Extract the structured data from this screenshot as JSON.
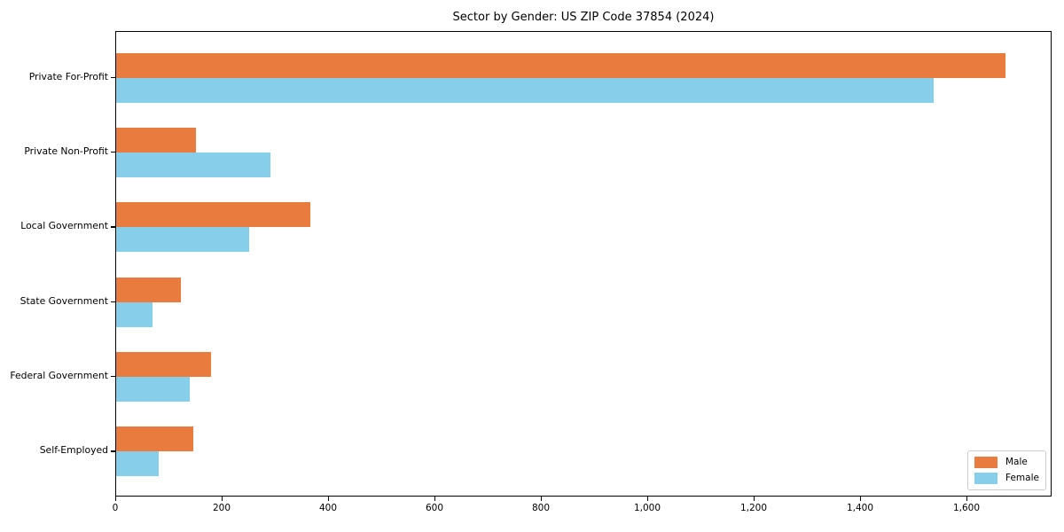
{
  "chart_data": {
    "type": "bar",
    "orientation": "horizontal",
    "title": "Sector by Gender: US ZIP Code 37854 (2024)",
    "categories": [
      "Private For-Profit",
      "Private Non-Profit",
      "Local Government",
      "State Government",
      "Federal Government",
      "Self-Employed"
    ],
    "series": [
      {
        "name": "Male",
        "color": "#e87b3d",
        "values": [
          1675,
          150,
          365,
          122,
          179,
          146
        ]
      },
      {
        "name": "Female",
        "color": "#87ceeb",
        "values": [
          1540,
          291,
          251,
          68,
          138,
          80
        ]
      }
    ],
    "xlabel": "",
    "ylabel": "",
    "xlim": [
      0,
      1760
    ],
    "x_ticks": [
      0,
      200,
      400,
      600,
      800,
      1000,
      1200,
      1400,
      1600
    ],
    "x_tick_labels": [
      "0",
      "200",
      "400",
      "600",
      "800",
      "1,000",
      "1,200",
      "1,400",
      "1,600"
    ],
    "grid": false,
    "legend_position": "lower-right"
  }
}
